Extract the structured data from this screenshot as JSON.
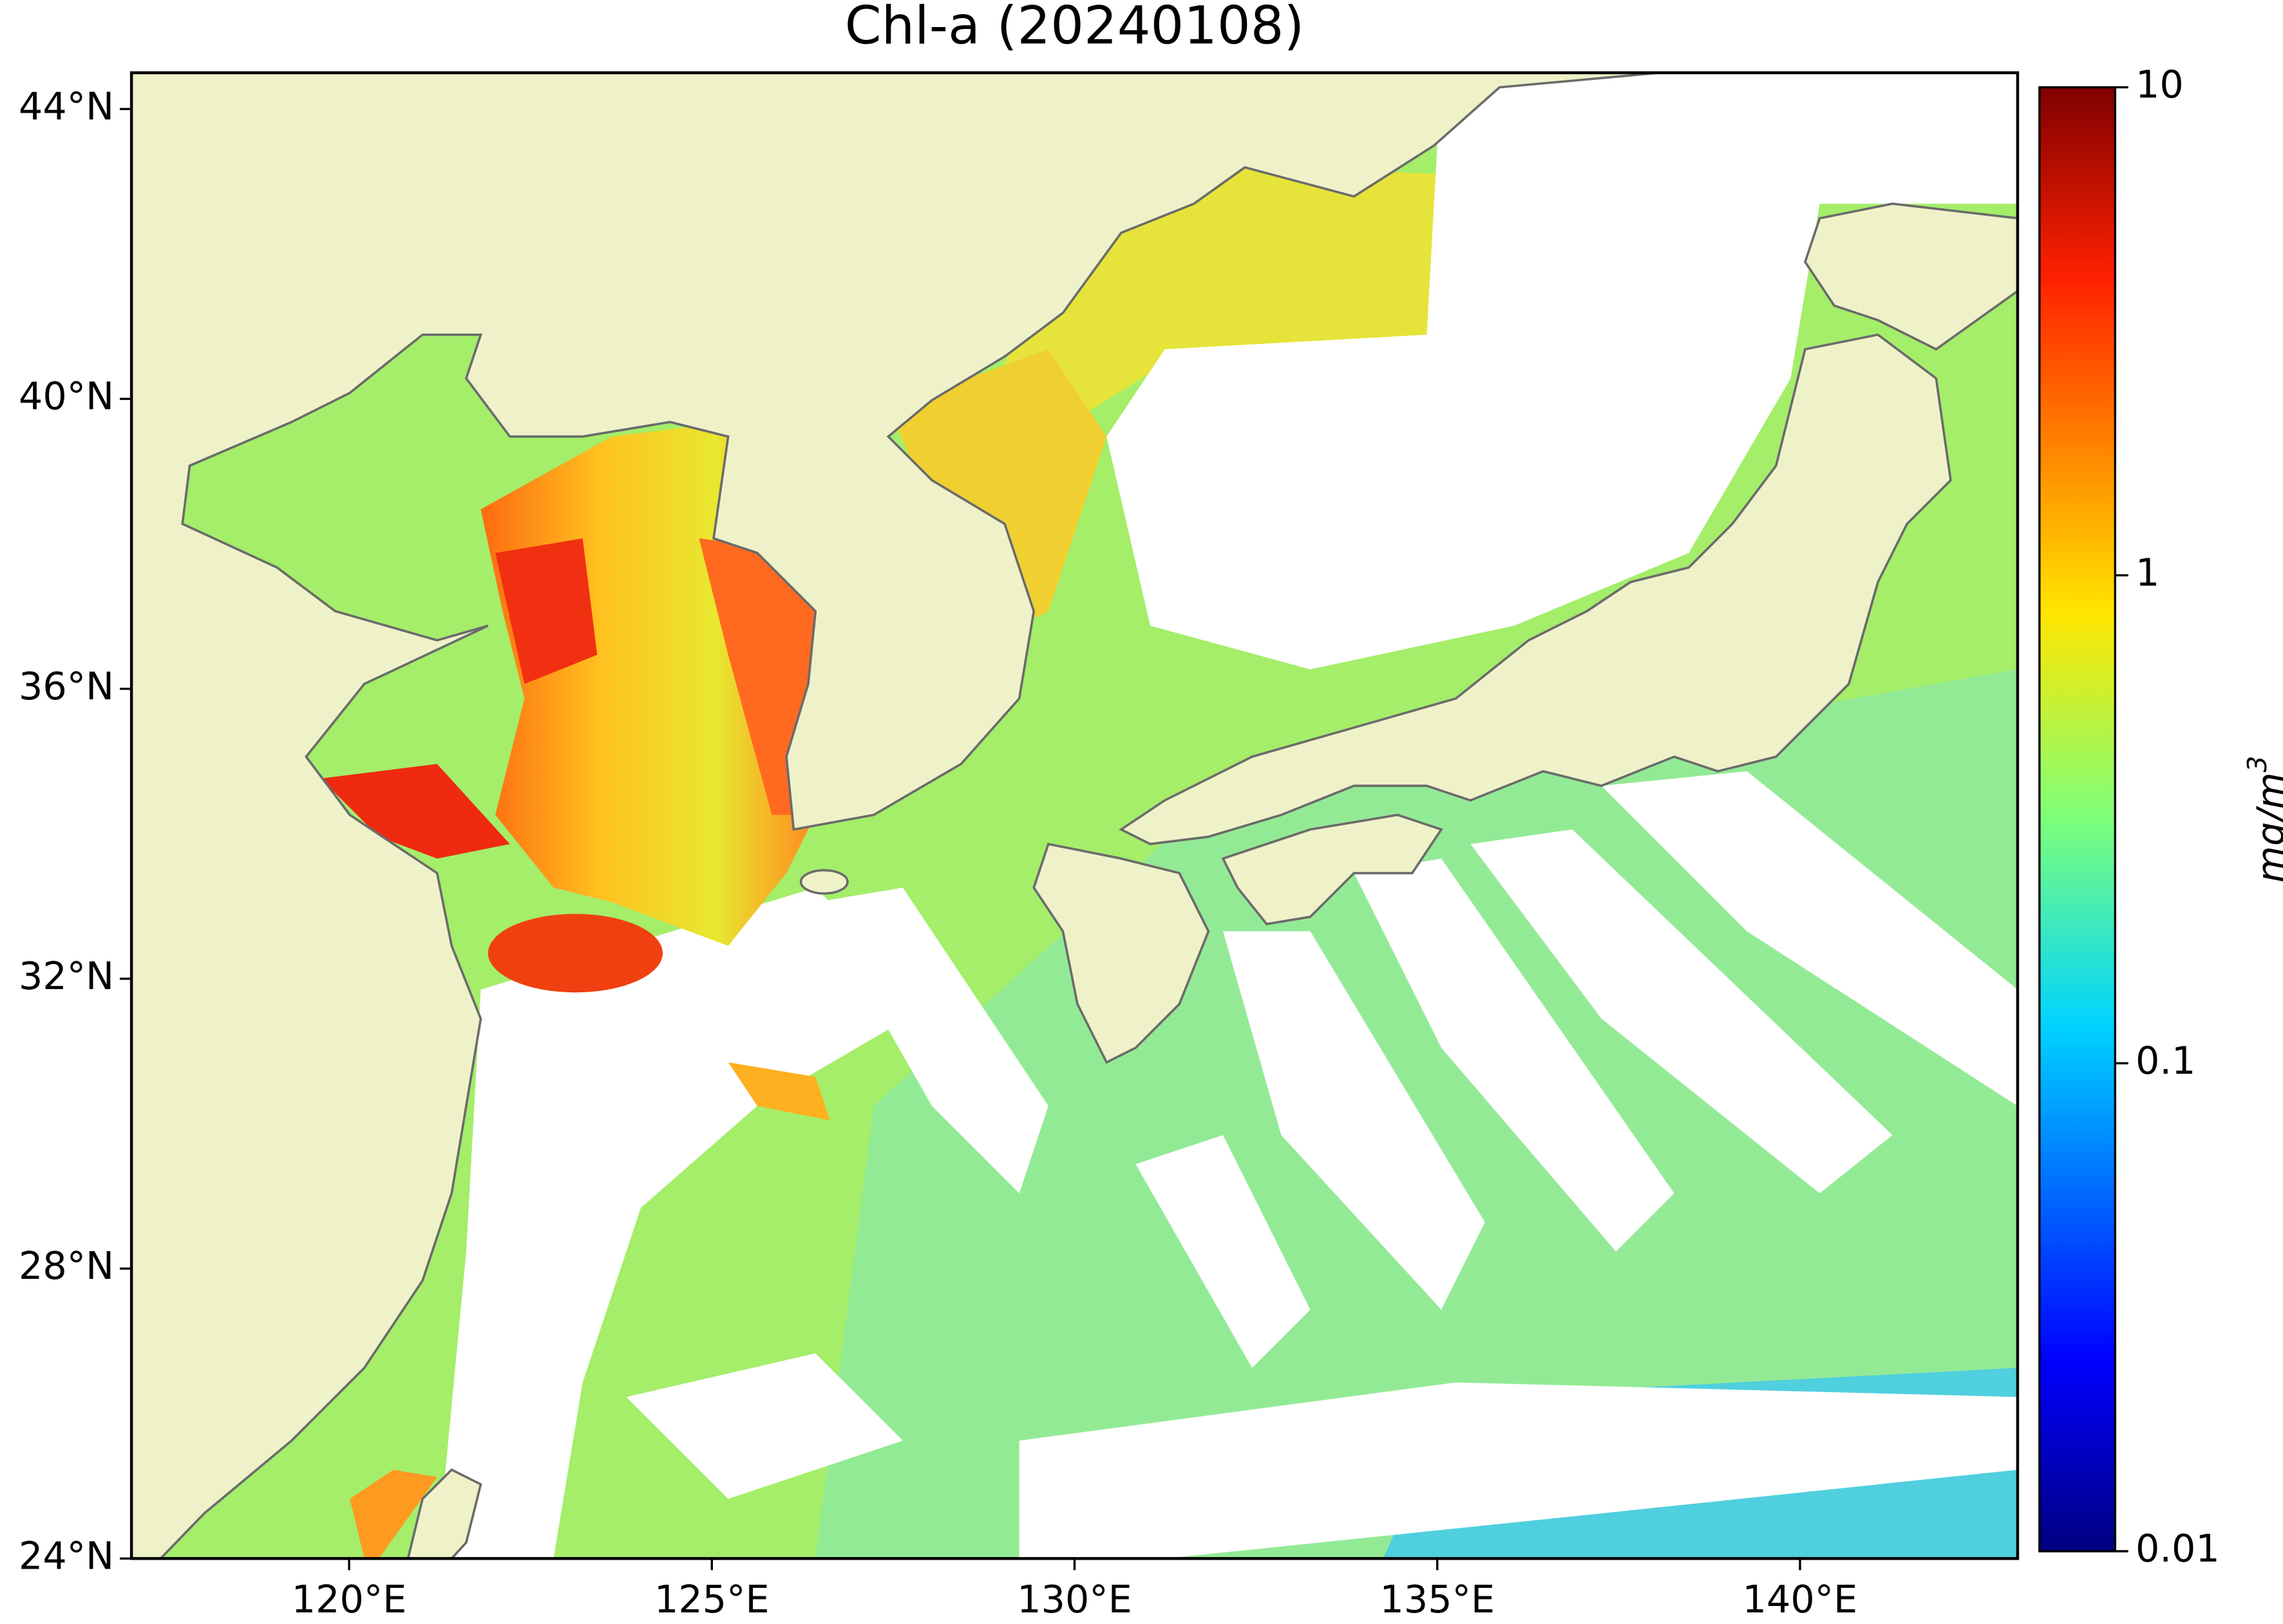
{
  "map": {
    "title": "Chl-a (20240108)",
    "xlim": [
      117,
      143
    ],
    "ylim": [
      24,
      44.5
    ],
    "xticks": [
      {
        "value": 120,
        "label": "120°E"
      },
      {
        "value": 125,
        "label": "125°E"
      },
      {
        "value": 130,
        "label": "130°E"
      },
      {
        "value": 135,
        "label": "135°E"
      },
      {
        "value": 140,
        "label": "140°E"
      }
    ],
    "yticks": [
      {
        "value": 24,
        "label": "24°N"
      },
      {
        "value": 28,
        "label": "28°N"
      },
      {
        "value": 32,
        "label": "32°N"
      },
      {
        "value": 36,
        "label": "36°N"
      },
      {
        "value": 40,
        "label": "40°N"
      },
      {
        "value": 44,
        "label": "44°N"
      }
    ],
    "colorbar": {
      "label": "mg/m",
      "label_exponent": "3",
      "scale": "log",
      "lim": [
        0.01,
        10
      ],
      "ticks": [
        0.01,
        0.1,
        1,
        10
      ]
    }
  }
}
